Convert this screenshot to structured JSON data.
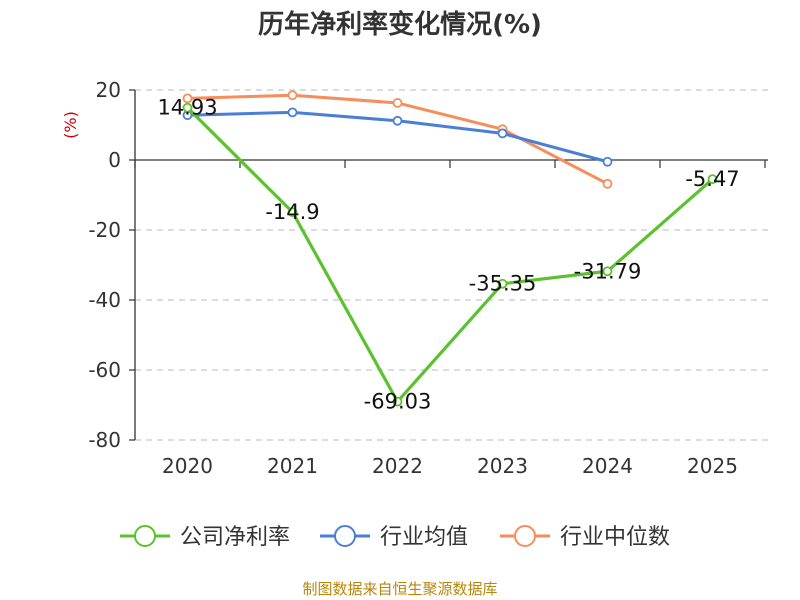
{
  "source_text": "制图数据来自恒生聚源数据库",
  "chart_data": {
    "type": "line",
    "title": "历年净利率变化情况(%)",
    "ylabel": "(%)",
    "xlabel": "",
    "categories": [
      "2020",
      "2021",
      "2022",
      "2023",
      "2024",
      "2025"
    ],
    "ylim": [
      -80,
      20
    ],
    "yticks": [
      "20",
      "0",
      "-20",
      "-40",
      "-60",
      "-80"
    ],
    "grid": true,
    "legend_position": "bottom",
    "series": [
      {
        "name": "公司净利率",
        "color": "#5cc12f",
        "values": [
          14.93,
          -14.9,
          -69.03,
          -35.35,
          -31.79,
          -5.47
        ],
        "labels": [
          "14.93",
          "-14.9",
          "-69.03",
          "-35.35",
          "-31.79",
          "-5.47"
        ]
      },
      {
        "name": "行业均值",
        "color": "#4a7fd6",
        "values": [
          12.8,
          13.6,
          11.2,
          7.6,
          -0.5,
          null
        ]
      },
      {
        "name": "行业中位数",
        "color": "#f78d5a",
        "values": [
          17.6,
          18.5,
          16.3,
          8.8,
          -6.8,
          null
        ]
      }
    ]
  }
}
